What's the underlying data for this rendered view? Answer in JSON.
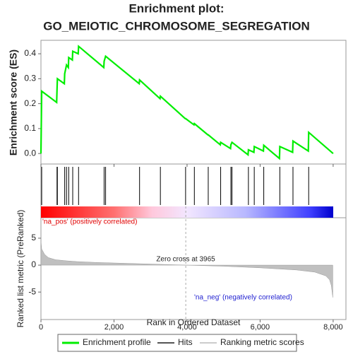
{
  "chart_data": [
    {
      "type": "line",
      "title": "Enrichment plot:",
      "subtitle": "GO_MEIOTIC_CHROMOSOME_SEGREGATION",
      "ylabel": "Enrichment score (ES)",
      "xlim": [
        0,
        8350
      ],
      "ylim": [
        -0.042,
        0.454
      ],
      "yticks": [
        {
          "value": 0,
          "label": "0.0"
        },
        0.1,
        0.2,
        0.3,
        0.4
      ],
      "x": [
        0,
        20,
        430,
        440,
        450,
        640,
        650,
        700,
        750,
        760,
        860,
        870,
        1020,
        1030,
        1720,
        1730,
        1770,
        2690,
        2700,
        3260,
        3270,
        3950,
        3960,
        4190,
        4200,
        4570,
        4580,
        4910,
        4920,
        5190,
        5200,
        5230,
        5670,
        5680,
        5830,
        5840,
        6090,
        6100,
        6530,
        6540,
        6890,
        6900,
        7320,
        7330,
        8000
      ],
      "series": [
        {
          "name": "Enrichment profile",
          "color": "#00ee00",
          "values": [
            0,
            0.25,
            0.205,
            0.255,
            0.3,
            0.28,
            0.32,
            0.355,
            0.345,
            0.385,
            0.375,
            0.41,
            0.4,
            0.43,
            0.345,
            0.37,
            0.39,
            0.28,
            0.295,
            0.22,
            0.23,
            0.14,
            0.14,
            0.115,
            0.12,
            0.075,
            0.075,
            0.035,
            0.045,
            0.02,
            0.035,
            0.045,
            -0.005,
            0.015,
            0.005,
            0.028,
            0.01,
            0.033,
            -0.02,
            0.028,
            0.005,
            0.05,
            0.01,
            0.085,
            0
          ]
        }
      ]
    },
    {
      "type": "hits",
      "name": "Hits",
      "color": "#000000",
      "xlim": [
        0,
        8350
      ],
      "x": [
        20,
        440,
        450,
        650,
        700,
        760,
        870,
        1030,
        1730,
        1770,
        2700,
        3270,
        3960,
        4200,
        4580,
        4920,
        5200,
        5230,
        5680,
        5840,
        6100,
        6540,
        6900,
        7330
      ]
    },
    {
      "type": "area",
      "name": "Ranking metric scores",
      "color": "#c0c0c0",
      "xlabel": "Rank in Ordered Dataset",
      "ylabel": "Ranked list metric (PreRanked)",
      "xlim": [
        0,
        8350
      ],
      "ylim": [
        -10.1,
        8.8
      ],
      "xticks": [
        0,
        {
          "value": 2000,
          "label": "2,000"
        },
        {
          "value": 4000,
          "label": "4,000"
        },
        {
          "value": 6000,
          "label": "6,000"
        },
        {
          "value": 8000,
          "label": "8,000"
        }
      ],
      "yticks": [
        -5,
        0,
        5
      ],
      "x": [
        0,
        20,
        100,
        200,
        400,
        700,
        1000,
        1500,
        2000,
        3000,
        3965,
        5000,
        6000,
        7000,
        7500,
        7800,
        7900,
        7950,
        7990
      ],
      "values": [
        4.5,
        3,
        2,
        1.4,
        1,
        0.8,
        0.65,
        0.5,
        0.4,
        0.2,
        0,
        -0.2,
        -0.5,
        -0.9,
        -1.3,
        -2,
        -2.7,
        -3.8,
        -6
      ],
      "zero_cross": 3965,
      "annotations": [
        "'na_pos' (positively correlated)",
        "Zero cross at 3965",
        "'na_neg' (negatively correlated)"
      ]
    }
  ]
}
